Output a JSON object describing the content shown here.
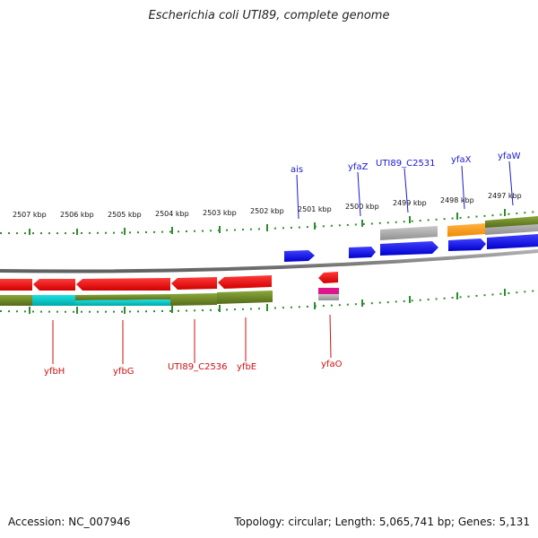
{
  "title": "Escherichia coli UTI89, complete genome",
  "footer": {
    "accession": "Accession: NC_007946",
    "topology": "Topology: circular; Length: 5,065,741 bp; Genes: 5,131"
  },
  "kbp_ticks": [
    "2507 kbp",
    "2506 kbp",
    "2505 kbp",
    "2504 kbp",
    "2503 kbp",
    "2502 kbp",
    "2501 kbp",
    "2500 kbp",
    "2499 kbp",
    "2498 kbp",
    "2497 kbp"
  ],
  "top_genes": [
    "ais",
    "yfaZ",
    "UTI89_C2531",
    "yfaX",
    "yfaW"
  ],
  "bottom_genes": [
    "yfbH",
    "yfbG",
    "UTI89_C2536",
    "yfbE",
    "yfaO"
  ],
  "colors": {
    "plus_strand": "#0000ee",
    "minus_strand": "#ee0000",
    "feature_olive": "#6b8e23",
    "feature_cyan": "#00c8c8",
    "feature_gray": "#a9a9a9",
    "feature_orange": "#ff9f1a",
    "feature_magenta": "#e0158c",
    "tick_green": "#228b22",
    "backbone": "#808080"
  }
}
